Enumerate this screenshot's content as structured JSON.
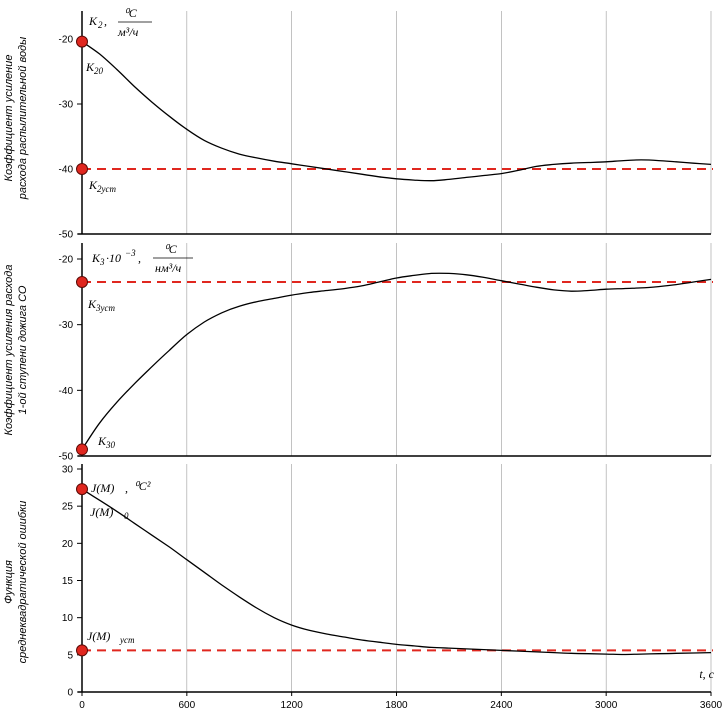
{
  "chart_data": [
    {
      "type": "line",
      "ylabel": "Коэффициент усиление расхода распылительной воды",
      "quantity": "K₂",
      "unit_num": "⁰C",
      "unit_den": "м³/ч",
      "ylim": [
        -50,
        -20
      ],
      "yticks": [
        -20,
        -30,
        -40,
        -50
      ],
      "xlim": [
        0,
        3600
      ],
      "xticks": [
        0,
        600,
        1200,
        1800,
        2400,
        3000,
        3600
      ],
      "series": [
        {
          "x": [
            0,
            100,
            200,
            300,
            400,
            500,
            600,
            700,
            800,
            900,
            1000,
            1100,
            1200,
            1300,
            1400,
            1500,
            1600,
            1700,
            1800,
            1900,
            2000,
            2100,
            2200,
            2300,
            2400,
            2500,
            2600,
            2700,
            2800,
            2900,
            3000,
            3100,
            3200,
            3300,
            3400,
            3500,
            3600
          ],
          "values": [
            -20.4,
            -22.3,
            -24.7,
            -27.3,
            -29.7,
            -31.9,
            -33.9,
            -35.6,
            -36.8,
            -37.7,
            -38.3,
            -38.8,
            -39.2,
            -39.6,
            -40.0,
            -40.4,
            -40.8,
            -41.2,
            -41.5,
            -41.7,
            -41.8,
            -41.6,
            -41.3,
            -41.0,
            -40.7,
            -40.2,
            -39.6,
            -39.3,
            -39.1,
            -39.0,
            -38.9,
            -38.7,
            -38.6,
            -38.7,
            -38.9,
            -39.1,
            -39.3
          ]
        }
      ],
      "reference_line": {
        "value": -40,
        "label": "K2уст"
      },
      "markers": [
        {
          "x": 0,
          "y": -20.4,
          "label": "K20"
        },
        {
          "x": 0,
          "y": -40,
          "label": "K2уст"
        }
      ],
      "marker_color": "#e0271f",
      "reference_color": "#e0271f"
    },
    {
      "type": "line",
      "ylabel_line1": "Коэффициент усиления расхода",
      "ylabel_line2": "1-ой ступени дожига СО",
      "quantity": "K₃ ·10⁻³",
      "unit_num": "⁰C",
      "unit_den": "нм³/ч",
      "ylim": [
        -50,
        -20
      ],
      "yticks": [
        -20,
        -30,
        -40,
        -50
      ],
      "xlim": [
        0,
        3600
      ],
      "xticks": [
        0,
        600,
        1200,
        1800,
        2400,
        3000,
        3600
      ],
      "series": [
        {
          "x": [
            0,
            100,
            200,
            300,
            400,
            500,
            600,
            700,
            800,
            900,
            1000,
            1100,
            1200,
            1300,
            1400,
            1500,
            1600,
            1700,
            1800,
            1900,
            2000,
            2100,
            2200,
            2300,
            2400,
            2500,
            2600,
            2700,
            2800,
            2900,
            3000,
            3100,
            3200,
            3300,
            3400,
            3500,
            3600
          ],
          "values": [
            -49.0,
            -45.0,
            -41.8,
            -39.0,
            -36.4,
            -33.9,
            -31.5,
            -29.6,
            -28.2,
            -27.2,
            -26.5,
            -26.0,
            -25.5,
            -25.1,
            -24.8,
            -24.5,
            -24.1,
            -23.5,
            -22.9,
            -22.5,
            -22.2,
            -22.2,
            -22.4,
            -22.8,
            -23.3,
            -23.8,
            -24.3,
            -24.7,
            -24.9,
            -24.8,
            -24.6,
            -24.5,
            -24.4,
            -24.2,
            -23.9,
            -23.5,
            -23.1
          ]
        }
      ],
      "reference_line": {
        "value": -23.5,
        "label": "K3уст"
      },
      "markers": [
        {
          "x": 0,
          "y": -49.0,
          "label": "K30"
        },
        {
          "x": 0,
          "y": -23.5,
          "label": "K3уст"
        }
      ],
      "marker_color": "#e0271f",
      "reference_color": "#e0271f"
    },
    {
      "type": "line",
      "ylabel_line1": "Функция",
      "ylabel_line2": "среднеквадратической ошибки",
      "quantity": "J(M),",
      "unit": "⁰C²",
      "ylim": [
        0,
        30
      ],
      "yticks": [
        0,
        5,
        10,
        15,
        20,
        25,
        30
      ],
      "xlim": [
        0,
        3600
      ],
      "xticks": [
        0,
        600,
        1200,
        1800,
        2400,
        3000,
        3600
      ],
      "xlabel": "t, c",
      "series": [
        {
          "x": [
            0,
            100,
            200,
            300,
            400,
            500,
            600,
            700,
            800,
            900,
            1000,
            1100,
            1200,
            1300,
            1400,
            1500,
            1600,
            1700,
            1800,
            1900,
            2000,
            2100,
            2200,
            2300,
            2400,
            2500,
            2600,
            2700,
            2800,
            2900,
            3000,
            3100,
            3200,
            3300,
            3400,
            3500,
            3600
          ],
          "values": [
            27.3,
            25.8,
            24.3,
            22.7,
            21.1,
            19.5,
            17.8,
            16.1,
            14.4,
            12.8,
            11.3,
            10.0,
            9.0,
            8.3,
            7.8,
            7.4,
            7.0,
            6.7,
            6.4,
            6.2,
            6.0,
            5.9,
            5.8,
            5.7,
            5.6,
            5.5,
            5.4,
            5.3,
            5.2,
            5.15,
            5.1,
            5.05,
            5.1,
            5.15,
            5.2,
            5.25,
            5.3
          ]
        }
      ],
      "reference_line": {
        "value": 5.6,
        "label": "J(M)уст"
      },
      "markers": [
        {
          "x": 0,
          "y": 27.3,
          "label": "J(M)0"
        },
        {
          "x": 0,
          "y": 5.6,
          "label": "J(M)уст"
        }
      ],
      "marker_color": "#e0271f",
      "reference_color": "#e0271f"
    }
  ],
  "annotations": {
    "p1_symbol": "K",
    "p1_sub": "2",
    "p1_sep": ",",
    "p1_k20_main": "K",
    "p1_k20_sub": "20",
    "p1_k2ust_main": "K",
    "p1_k2ust_sub": "2уст",
    "p1_ylabel_line1": "Коэффициент усиление",
    "p1_ylabel_line2": "расхода распылительной воды",
    "p2_symbol": "K",
    "p2_sub": "3",
    "p2_mult": "·10",
    "p2_exp": "−3",
    "p2_sep": ",",
    "p2_k3ust_main": "K",
    "p2_k3ust_sub": "3уст",
    "p2_k30_main": "K",
    "p2_k30_sub": "30",
    "p3_jm": "J(M)",
    "p3_sep": ",",
    "p3_jm0_main": "J(M)",
    "p3_jm0_sub": "0",
    "p3_jmust_main": "J(M)",
    "p3_jmust_sub": "уст"
  }
}
